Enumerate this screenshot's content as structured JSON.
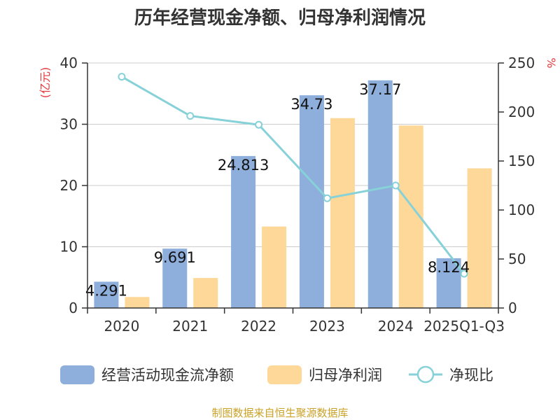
{
  "chart_data": {
    "type": "bar",
    "title": "历年经营现金净额、归母净利润情况",
    "categories": [
      "2020",
      "2021",
      "2022",
      "2023",
      "2024",
      "2025Q1-Q3"
    ],
    "series": [
      {
        "name": "经营活动现金流净额",
        "chart": "bar",
        "axis": "left",
        "color": "#8eaedb",
        "values": [
          4.291,
          9.691,
          24.813,
          34.73,
          37.17,
          8.124
        ],
        "labels": [
          "4.291",
          "9.691",
          "24.813",
          "34.73",
          "37.17",
          "8.124"
        ]
      },
      {
        "name": "归母净利润",
        "chart": "bar",
        "axis": "left",
        "color": "#fdd898",
        "values": [
          1.8,
          4.9,
          13.3,
          31.0,
          29.8,
          22.8
        ]
      },
      {
        "name": "净现比",
        "chart": "line",
        "axis": "right",
        "color": "#87d1d8",
        "values": [
          236,
          196,
          187,
          112,
          125,
          35
        ]
      }
    ],
    "y_left": {
      "unit": "(亿元)",
      "ylim": [
        0,
        40
      ],
      "ticks": [
        "0",
        "10",
        "20",
        "30",
        "40"
      ]
    },
    "y_right": {
      "unit": "%",
      "ylim": [
        0,
        250
      ],
      "ticks": [
        "0",
        "50",
        "100",
        "150",
        "200",
        "250"
      ]
    },
    "grid": true,
    "legend_position": "bottom"
  },
  "source": "制图数据来自恒生聚源数据库"
}
